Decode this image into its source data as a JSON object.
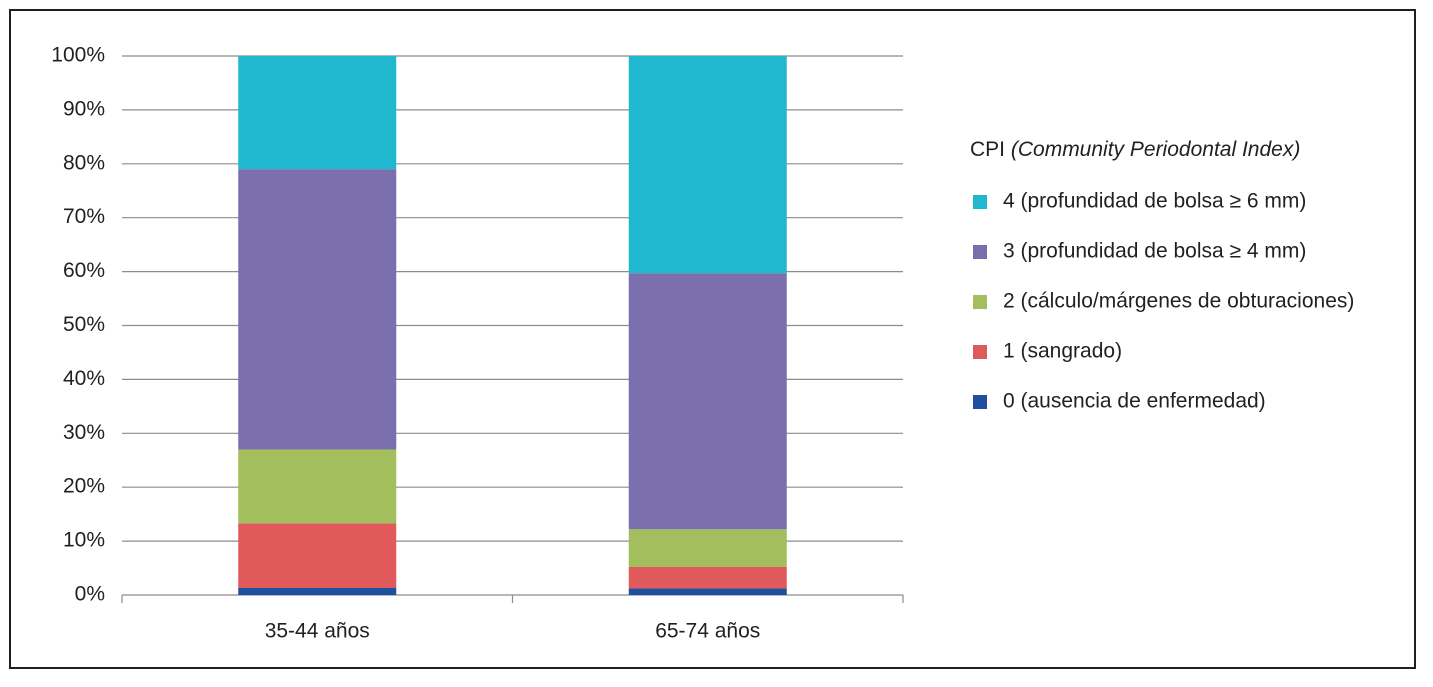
{
  "chart_data": {
    "type": "stacked_bar",
    "categories": [
      "35-44 años",
      "65-74 años"
    ],
    "series": [
      {
        "name": "0 (ausencia de enfermedad)",
        "color": "#1f4fa0",
        "values": [
          1.3,
          1.2
        ]
      },
      {
        "name": "1 (sangrado)",
        "color": "#e05a5b",
        "values": [
          12,
          4
        ]
      },
      {
        "name": "2 (cálculo/márgenes de obturaciones)",
        "color": "#a3be5c",
        "values": [
          13.7,
          7
        ]
      },
      {
        "name": "3 (profundidad de bolsa ≥ 4 mm)",
        "color": "#7b6fad",
        "values": [
          52,
          47.5
        ]
      },
      {
        "name": "4 (profundidad de bolsa ≥ 6 mm)",
        "color": "#1fb8cf",
        "values": [
          21,
          40.3
        ]
      }
    ],
    "legend_title": {
      "text": "CPI",
      "italic": "(Community Periodontal Index)"
    },
    "legend_position": "right",
    "ylim": [
      0,
      100
    ],
    "yticks": [
      {
        "value": 0,
        "label": "0%"
      },
      {
        "value": 10,
        "label": "10%"
      },
      {
        "value": 20,
        "label": "20%"
      },
      {
        "value": 30,
        "label": "30%"
      },
      {
        "value": 40,
        "label": "40%"
      },
      {
        "value": 50,
        "label": "50%"
      },
      {
        "value": 60,
        "label": "60%"
      },
      {
        "value": 70,
        "label": "70%"
      },
      {
        "value": 80,
        "label": "80%"
      },
      {
        "value": 90,
        "label": "90%"
      },
      {
        "value": 100,
        "label": "100%"
      }
    ],
    "grid": true
  }
}
